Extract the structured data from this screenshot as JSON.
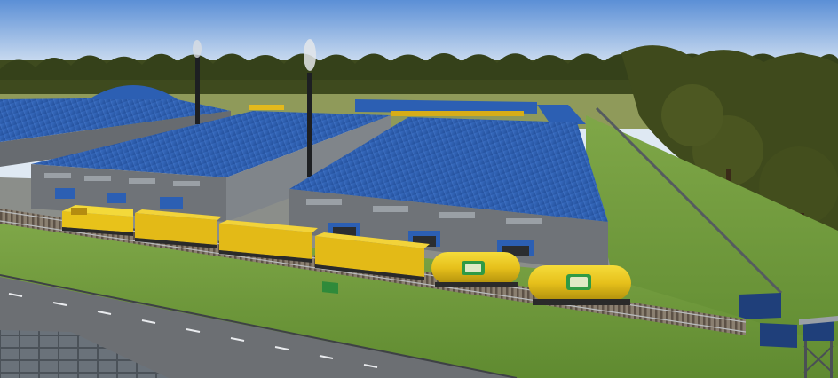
{
  "scene": {
    "description_tags": [
      "industrial-yard",
      "freight-train",
      "warehouses",
      "forest",
      "smokestacks"
    ],
    "colors": {
      "sky_top": "#5b8fd6",
      "sky_bottom": "#eaf1f7",
      "roof_blue": "#2c5fb3",
      "wall_grey": "#6f7378",
      "grass": "#6f9a3a",
      "road": "#6c6f73",
      "train_yellow": "#e8c21a",
      "forest": "#3e4a1e"
    },
    "train": {
      "locomotive_count": 1,
      "boxcar_count": 3,
      "tank_car_count": 2
    }
  }
}
